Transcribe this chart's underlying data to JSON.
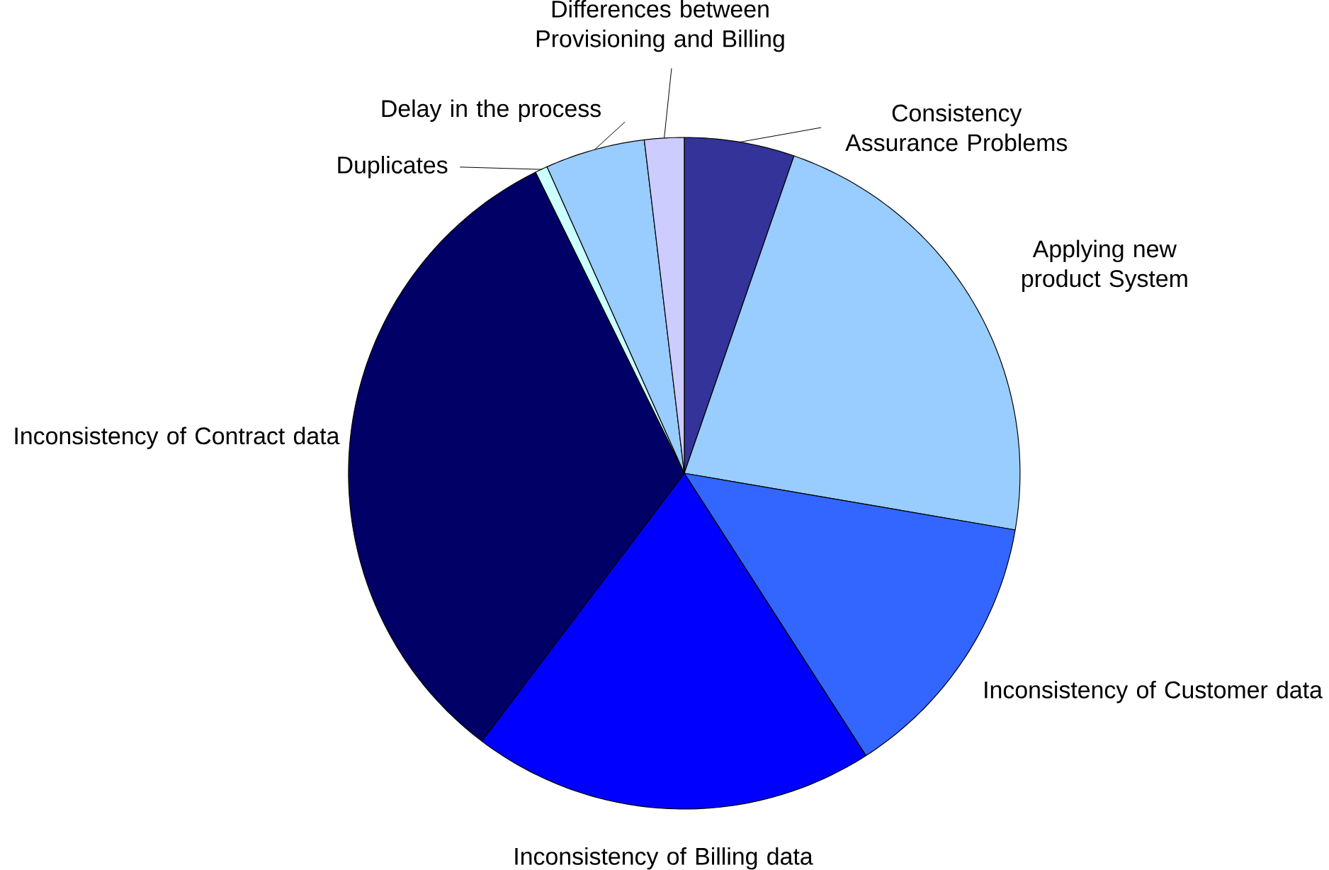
{
  "chart_data": {
    "type": "pie",
    "categories": [
      "Consistency Assurance Problems",
      "Applying new product System",
      "Inconsistency of Customer data",
      "Inconsistency of Billing data",
      "Inconsistency of Contract data",
      "Duplicates",
      "Delay in the process",
      "Differences between Provisioning and Billing"
    ],
    "values": [
      5.3,
      22.4,
      13.2,
      19.4,
      32.4,
      0.6,
      4.8,
      1.9
    ],
    "colors": [
      "#333399",
      "#99ccff",
      "#3366ff",
      "#0000ff",
      "#000066",
      "#ccffff",
      "#99ccff",
      "#ccccff"
    ]
  }
}
